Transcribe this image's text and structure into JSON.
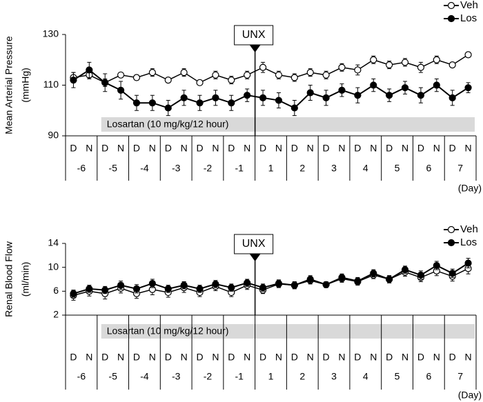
{
  "chart_data": [
    {
      "type": "line",
      "ylabel": [
        "Mean Arterial Pressure",
        "(mmHg)"
      ],
      "categories": [
        "D",
        "N",
        "D",
        "N",
        "D",
        "N",
        "D",
        "N",
        "D",
        "N",
        "D",
        "N",
        "D",
        "N",
        "D",
        "N",
        "D",
        "N",
        "D",
        "N",
        "D",
        "N",
        "D",
        "N",
        "D",
        "N"
      ],
      "days": [
        "-6",
        "-5",
        "-4",
        "-3",
        "-2",
        "-1",
        "1",
        "2",
        "3",
        "4",
        "5",
        "6",
        "7"
      ],
      "day_unit": "(Day)",
      "annotation": "UNX",
      "treatment": "Losartan (10 mg/kg/12 hour)",
      "ylim": [
        90,
        130
      ],
      "yticks": [
        90,
        110,
        130
      ],
      "series": [
        {
          "name": "Veh",
          "color": "#ffffff",
          "values": [
            113,
            114,
            111,
            114,
            113,
            115,
            112,
            115,
            111,
            114,
            112,
            114,
            117,
            114,
            113,
            115,
            114,
            117,
            116,
            120,
            118,
            119,
            117,
            120,
            118,
            122
          ],
          "errors": [
            2,
            1.5,
            1.5,
            1,
            1,
            1.5,
            1,
            1.5,
            1,
            1.5,
            1.5,
            1.5,
            2,
            1.5,
            1.5,
            1.5,
            1.5,
            1.5,
            2,
            1.5,
            1.5,
            1.5,
            2,
            1.5,
            1,
            1
          ]
        },
        {
          "name": "Los",
          "color": "#000000",
          "values": [
            112,
            116,
            111,
            108,
            103,
            103,
            101,
            105,
            103,
            105,
            103,
            106,
            105,
            104,
            101,
            107,
            105,
            108,
            106,
            110,
            106,
            109,
            106,
            110,
            105,
            109
          ],
          "errors": [
            3,
            3,
            3.5,
            3.5,
            3,
            3,
            3,
            3,
            3,
            3,
            3,
            2.5,
            3,
            3,
            3,
            3,
            3,
            2.5,
            3,
            2.5,
            2.5,
            2.5,
            3,
            2.5,
            3,
            2
          ]
        }
      ]
    },
    {
      "type": "line",
      "ylabel": [
        "Renal Blood Flow",
        "(ml/min)"
      ],
      "categories": [
        "D",
        "N",
        "D",
        "N",
        "D",
        "N",
        "D",
        "N",
        "D",
        "N",
        "D",
        "N",
        "D",
        "N",
        "D",
        "N",
        "D",
        "N",
        "D",
        "N",
        "D",
        "N",
        "D",
        "N",
        "D",
        "N"
      ],
      "days": [
        "-6",
        "-5",
        "-4",
        "-3",
        "-2",
        "-1",
        "1",
        "2",
        "3",
        "4",
        "5",
        "6",
        "7"
      ],
      "day_unit": "(Day)",
      "annotation": "UNX",
      "treatment": "Losartan (10 mg/kg/12 hour)",
      "ylim": [
        2,
        14
      ],
      "yticks": [
        2,
        6,
        10,
        14
      ],
      "series": [
        {
          "name": "Veh",
          "color": "#ffffff",
          "values": [
            5.3,
            6,
            5.6,
            6.5,
            5.6,
            6.3,
            5.8,
            6.6,
            5.8,
            6.8,
            5.8,
            7,
            6.2,
            7.2,
            7,
            7.8,
            7.1,
            8.1,
            7.6,
            8.7,
            8,
            9.2,
            8.3,
            9.4,
            8.5,
            9.8
          ],
          "errors": [
            0.8,
            0.8,
            0.9,
            0.8,
            0.8,
            0.9,
            0.8,
            0.8,
            0.7,
            0.7,
            0.7,
            0.7,
            0.6,
            0.6,
            0.5,
            0.6,
            0.5,
            0.6,
            0.6,
            0.6,
            0.6,
            0.7,
            0.7,
            0.8,
            0.8,
            0.9
          ]
        },
        {
          "name": "Los",
          "color": "#000000",
          "values": [
            5.6,
            6.4,
            6.2,
            7,
            6.4,
            7.3,
            6.4,
            7,
            6.4,
            7.2,
            6.6,
            7.4,
            6.6,
            7.3,
            7,
            8,
            7.1,
            8.3,
            7.7,
            9,
            8,
            9.6,
            8.7,
            10.3,
            9,
            10.7
          ],
          "errors": [
            0.6,
            0.6,
            0.6,
            0.7,
            0.7,
            0.7,
            0.6,
            0.6,
            0.6,
            0.6,
            0.6,
            0.6,
            0.6,
            0.6,
            0.6,
            0.6,
            0.5,
            0.6,
            0.6,
            0.6,
            0.6,
            0.6,
            0.7,
            0.7,
            0.7,
            0.8
          ]
        }
      ]
    }
  ]
}
